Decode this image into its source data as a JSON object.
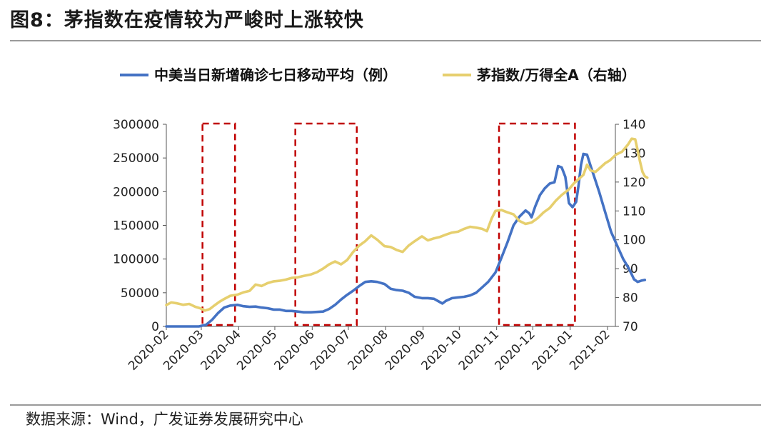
{
  "figure": {
    "title": "图8：茅指数在疫情较为严峻时上涨较快",
    "source": "数据来源：Wind，广发证券发展研究中心"
  },
  "chart_data": {
    "type": "line",
    "title": "茅指数在疫情较为严峻时上涨较快",
    "x_tick_labels": [
      "2020-02",
      "2020-03",
      "2020-04",
      "2020-05",
      "2020-06",
      "2020-07",
      "2020-08",
      "2020-09",
      "2020-10",
      "2020-11",
      "2020-12",
      "2021-01",
      "2021-02"
    ],
    "y_left": {
      "ticks": [
        "0",
        "50000",
        "100000",
        "150000",
        "200000",
        "250000",
        "300000"
      ],
      "ylim": [
        0,
        300000
      ]
    },
    "y_right": {
      "ticks": [
        "70",
        "80",
        "90",
        "100",
        "110",
        "120",
        "130",
        "140"
      ],
      "ylim": [
        70,
        140
      ]
    },
    "colors": {
      "cases": "#4472c4",
      "index": "#e6cf6e",
      "highlight": "#c00000"
    },
    "series": [
      {
        "name": "中美当日新增确诊七日移动平均（例）",
        "axis": "left",
        "points": [
          [
            "2020-02-01",
            0
          ],
          [
            "2020-02-15",
            0
          ],
          [
            "2020-02-28",
            0
          ],
          [
            "2020-03-05",
            2500
          ],
          [
            "2020-03-10",
            10000
          ],
          [
            "2020-03-15",
            20000
          ],
          [
            "2020-03-20",
            28000
          ],
          [
            "2020-03-25",
            31000
          ],
          [
            "2020-03-31",
            32000
          ],
          [
            "2020-04-05",
            30000
          ],
          [
            "2020-04-10",
            29000
          ],
          [
            "2020-04-15",
            29500
          ],
          [
            "2020-04-20",
            28000
          ],
          [
            "2020-04-25",
            27000
          ],
          [
            "2020-04-30",
            25000
          ],
          [
            "2020-05-05",
            25000
          ],
          [
            "2020-05-10",
            23000
          ],
          [
            "2020-05-15",
            23000
          ],
          [
            "2020-05-20",
            22000
          ],
          [
            "2020-05-25",
            21000
          ],
          [
            "2020-05-31",
            21000
          ],
          [
            "2020-06-05",
            21500
          ],
          [
            "2020-06-10",
            22000
          ],
          [
            "2020-06-15",
            26000
          ],
          [
            "2020-06-20",
            32000
          ],
          [
            "2020-06-25",
            40000
          ],
          [
            "2020-06-30",
            47000
          ],
          [
            "2020-07-05",
            53000
          ],
          [
            "2020-07-10",
            60000
          ],
          [
            "2020-07-15",
            66000
          ],
          [
            "2020-07-20",
            67000
          ],
          [
            "2020-07-25",
            66000
          ],
          [
            "2020-07-31",
            63000
          ],
          [
            "2020-08-05",
            56000
          ],
          [
            "2020-08-10",
            54000
          ],
          [
            "2020-08-15",
            53000
          ],
          [
            "2020-08-20",
            50000
          ],
          [
            "2020-08-25",
            44000
          ],
          [
            "2020-08-31",
            42000
          ],
          [
            "2020-09-05",
            42000
          ],
          [
            "2020-09-10",
            41000
          ],
          [
            "2020-09-15",
            36000
          ],
          [
            "2020-09-17",
            34000
          ],
          [
            "2020-09-20",
            38000
          ],
          [
            "2020-09-25",
            42000
          ],
          [
            "2020-09-30",
            43000
          ],
          [
            "2020-10-05",
            44000
          ],
          [
            "2020-10-10",
            46000
          ],
          [
            "2020-10-15",
            50000
          ],
          [
            "2020-10-20",
            58000
          ],
          [
            "2020-10-25",
            66000
          ],
          [
            "2020-10-31",
            80000
          ],
          [
            "2020-11-05",
            102000
          ],
          [
            "2020-11-10",
            125000
          ],
          [
            "2020-11-15",
            150000
          ],
          [
            "2020-11-20",
            163000
          ],
          [
            "2020-11-25",
            172000
          ],
          [
            "2020-11-28",
            168000
          ],
          [
            "2020-11-30",
            162000
          ],
          [
            "2020-12-03",
            178000
          ],
          [
            "2020-12-07",
            195000
          ],
          [
            "2020-12-11",
            205000
          ],
          [
            "2020-12-15",
            212000
          ],
          [
            "2020-12-19",
            214000
          ],
          [
            "2020-12-22",
            238000
          ],
          [
            "2020-12-25",
            236000
          ],
          [
            "2020-12-28",
            222000
          ],
          [
            "2020-12-31",
            183000
          ],
          [
            "2021-01-03",
            177000
          ],
          [
            "2021-01-06",
            185000
          ],
          [
            "2021-01-08",
            210000
          ],
          [
            "2021-01-10",
            240000
          ],
          [
            "2021-01-12",
            256000
          ],
          [
            "2021-01-15",
            255000
          ],
          [
            "2021-01-18",
            238000
          ],
          [
            "2021-01-21",
            222000
          ],
          [
            "2021-01-25",
            200000
          ],
          [
            "2021-01-30",
            170000
          ],
          [
            "2021-02-04",
            140000
          ],
          [
            "2021-02-09",
            120000
          ],
          [
            "2021-02-14",
            100000
          ],
          [
            "2021-02-19",
            85000
          ],
          [
            "2021-02-23",
            70000
          ],
          [
            "2021-02-26",
            66000
          ],
          [
            "2021-03-01",
            68000
          ],
          [
            "2021-03-04",
            69000
          ]
        ]
      },
      {
        "name": "茅指数/万得全A（右轴）",
        "axis": "right",
        "points": [
          [
            "2020-02-01",
            77.4
          ],
          [
            "2020-02-05",
            78.3
          ],
          [
            "2020-02-10",
            78.0
          ],
          [
            "2020-02-15",
            77.5
          ],
          [
            "2020-02-20",
            77.8
          ],
          [
            "2020-02-25",
            76.8
          ],
          [
            "2020-02-29",
            76.3
          ],
          [
            "2020-03-04",
            75.5
          ],
          [
            "2020-03-08",
            76.0
          ],
          [
            "2020-03-12",
            77.3
          ],
          [
            "2020-03-16",
            78.5
          ],
          [
            "2020-03-20",
            79.5
          ],
          [
            "2020-03-25",
            80.6
          ],
          [
            "2020-03-31",
            81.0
          ],
          [
            "2020-04-05",
            81.8
          ],
          [
            "2020-04-10",
            82.3
          ],
          [
            "2020-04-15",
            84.5
          ],
          [
            "2020-04-20",
            84.0
          ],
          [
            "2020-04-25",
            85.0
          ],
          [
            "2020-04-30",
            85.6
          ],
          [
            "2020-05-05",
            85.8
          ],
          [
            "2020-05-10",
            86.2
          ],
          [
            "2020-05-15",
            86.8
          ],
          [
            "2020-05-20",
            87.0
          ],
          [
            "2020-05-25",
            87.5
          ],
          [
            "2020-05-31",
            88.0
          ],
          [
            "2020-06-05",
            88.8
          ],
          [
            "2020-06-10",
            90.0
          ],
          [
            "2020-06-15",
            91.5
          ],
          [
            "2020-06-20",
            92.5
          ],
          [
            "2020-06-25",
            91.5
          ],
          [
            "2020-06-30",
            93.0
          ],
          [
            "2020-07-05",
            95.8
          ],
          [
            "2020-07-10",
            98.0
          ],
          [
            "2020-07-15",
            99.5
          ],
          [
            "2020-07-20",
            101.5
          ],
          [
            "2020-07-25",
            100.0
          ],
          [
            "2020-07-31",
            97.8
          ],
          [
            "2020-08-05",
            97.5
          ],
          [
            "2020-08-10",
            96.5
          ],
          [
            "2020-08-15",
            95.8
          ],
          [
            "2020-08-20",
            98.0
          ],
          [
            "2020-08-25",
            99.5
          ],
          [
            "2020-08-31",
            101.2
          ],
          [
            "2020-09-05",
            99.8
          ],
          [
            "2020-09-10",
            100.5
          ],
          [
            "2020-09-15",
            101.0
          ],
          [
            "2020-09-20",
            101.8
          ],
          [
            "2020-09-25",
            102.5
          ],
          [
            "2020-09-30",
            102.8
          ],
          [
            "2020-10-05",
            103.8
          ],
          [
            "2020-10-10",
            104.5
          ],
          [
            "2020-10-15",
            104.2
          ],
          [
            "2020-10-20",
            103.8
          ],
          [
            "2020-10-24",
            103.0
          ],
          [
            "2020-10-28",
            107.5
          ],
          [
            "2020-10-31",
            110.0
          ],
          [
            "2020-11-05",
            110.3
          ],
          [
            "2020-11-10",
            109.5
          ],
          [
            "2020-11-15",
            108.8
          ],
          [
            "2020-11-20",
            106.5
          ],
          [
            "2020-11-25",
            105.5
          ],
          [
            "2020-11-30",
            106.0
          ],
          [
            "2020-12-05",
            107.5
          ],
          [
            "2020-12-10",
            109.5
          ],
          [
            "2020-12-15",
            111.0
          ],
          [
            "2020-12-20",
            113.5
          ],
          [
            "2020-12-25",
            115.5
          ],
          [
            "2020-12-31",
            117.5
          ],
          [
            "2021-01-04",
            119.5
          ],
          [
            "2021-01-08",
            121.0
          ],
          [
            "2021-01-12",
            122.5
          ],
          [
            "2021-01-15",
            126.0
          ],
          [
            "2021-01-18",
            124.0
          ],
          [
            "2021-01-22",
            123.5
          ],
          [
            "2021-01-26",
            125.0
          ],
          [
            "2021-01-30",
            126.5
          ],
          [
            "2021-02-03",
            127.5
          ],
          [
            "2021-02-08",
            129.5
          ],
          [
            "2021-02-13",
            130.5
          ],
          [
            "2021-02-18",
            133.0
          ],
          [
            "2021-02-21",
            135.0
          ],
          [
            "2021-02-24",
            134.8
          ],
          [
            "2021-02-26",
            131.0
          ],
          [
            "2021-02-28",
            127.0
          ],
          [
            "2021-03-02",
            123.5
          ],
          [
            "2021-03-04",
            122.0
          ],
          [
            "2021-03-06",
            121.5
          ]
        ]
      }
    ],
    "highlight_ranges": [
      [
        "2020-03-02",
        "2020-03-29"
      ],
      [
        "2020-05-18",
        "2020-07-08"
      ],
      [
        "2020-11-03",
        "2021-01-05"
      ]
    ],
    "legend_placement": "top",
    "grid": false
  }
}
